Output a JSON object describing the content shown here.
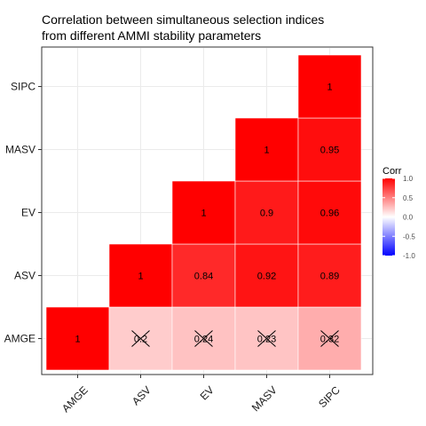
{
  "chart_data": {
    "type": "heatmap",
    "title": "Correlation between simultaneous selection indices\nfrom different AMMI stability parameters",
    "variables": [
      "AMGE",
      "ASV",
      "EV",
      "MASV",
      "SIPC"
    ],
    "cells": [
      {
        "x": "AMGE",
        "y": "AMGE",
        "value": 1,
        "label": "1",
        "significant": true
      },
      {
        "x": "ASV",
        "y": "AMGE",
        "value": 0.2,
        "label": "0.2",
        "significant": false
      },
      {
        "x": "EV",
        "y": "AMGE",
        "value": 0.24,
        "label": "0.24",
        "significant": false
      },
      {
        "x": "MASV",
        "y": "AMGE",
        "value": 0.23,
        "label": "0.23",
        "significant": false
      },
      {
        "x": "SIPC",
        "y": "AMGE",
        "value": 0.32,
        "label": "0.32",
        "significant": false
      },
      {
        "x": "ASV",
        "y": "ASV",
        "value": 1,
        "label": "1",
        "significant": true
      },
      {
        "x": "EV",
        "y": "ASV",
        "value": 0.84,
        "label": "0.84",
        "significant": true
      },
      {
        "x": "MASV",
        "y": "ASV",
        "value": 0.92,
        "label": "0.92",
        "significant": true
      },
      {
        "x": "SIPC",
        "y": "ASV",
        "value": 0.89,
        "label": "0.89",
        "significant": true
      },
      {
        "x": "EV",
        "y": "EV",
        "value": 1,
        "label": "1",
        "significant": true
      },
      {
        "x": "MASV",
        "y": "EV",
        "value": 0.9,
        "label": "0.9",
        "significant": true
      },
      {
        "x": "SIPC",
        "y": "EV",
        "value": 0.96,
        "label": "0.96",
        "significant": true
      },
      {
        "x": "MASV",
        "y": "MASV",
        "value": 1,
        "label": "1",
        "significant": true
      },
      {
        "x": "SIPC",
        "y": "MASV",
        "value": 0.95,
        "label": "0.95",
        "significant": true
      },
      {
        "x": "SIPC",
        "y": "SIPC",
        "value": 1,
        "label": "1",
        "significant": true
      }
    ],
    "legend": {
      "title": "Corr",
      "placement": "right",
      "range": [
        -1,
        1
      ],
      "ticks": [
        1.0,
        0.5,
        0.0,
        -0.5,
        -1.0
      ],
      "tick_labels": [
        "1.0",
        "0.5",
        "0.0",
        "-0.5",
        "-1.0"
      ],
      "colors": {
        "low": "#0000ff",
        "mid": "#ffffff",
        "high": "#ff0000"
      }
    },
    "grid": true
  }
}
